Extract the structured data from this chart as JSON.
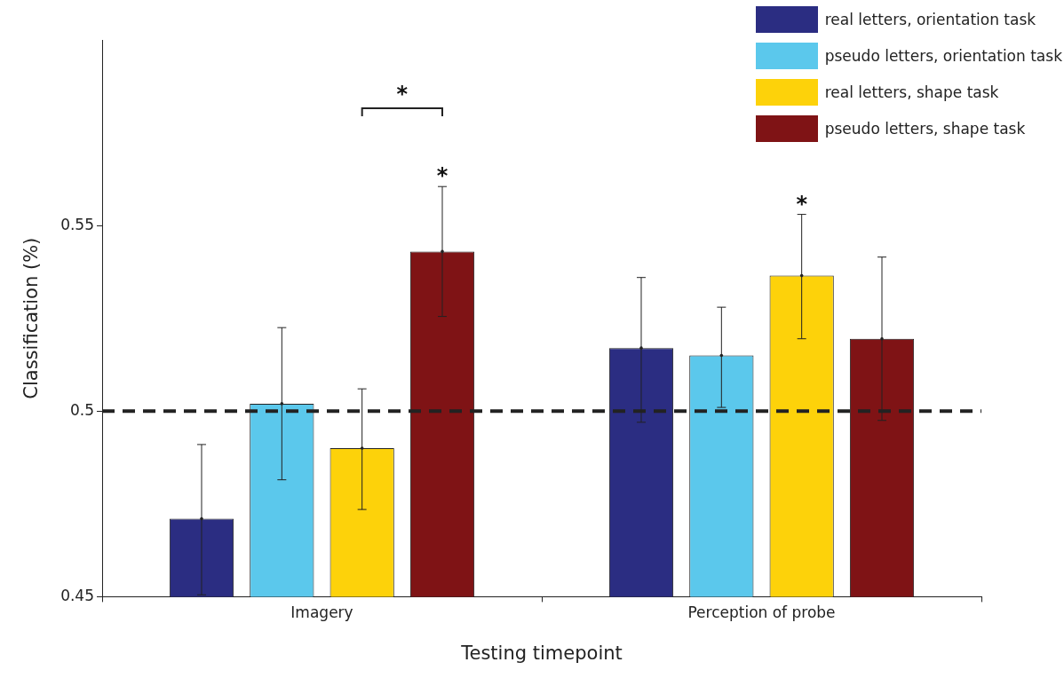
{
  "chart_data": {
    "type": "bar",
    "xlabel": "Testing timepoint",
    "ylabel": "Classification (%)",
    "categories": [
      "Imagery",
      "Perception of probe"
    ],
    "series": [
      {
        "name": "real letters, orientation task",
        "color": "#2b2d82",
        "values": [
          0.471,
          0.517
        ],
        "errors": [
          [
            0.4505,
            0.491
          ],
          [
            0.497,
            0.536
          ]
        ]
      },
      {
        "name": "pseudo letters, orientation task",
        "color": "#5bc8ec",
        "values": [
          0.502,
          0.515
        ],
        "errors": [
          [
            0.4815,
            0.5225
          ],
          [
            0.501,
            0.528
          ]
        ]
      },
      {
        "name": "real letters, shape task",
        "color": "#fdd20a",
        "values": [
          0.49,
          0.5365
        ],
        "errors": [
          [
            0.4735,
            0.506
          ],
          [
            0.5195,
            0.553
          ]
        ],
        "value_labels": [
          null,
          "*"
        ]
      },
      {
        "name": "pseudo letters, shape task",
        "color": "#7f1315",
        "values": [
          0.543,
          0.5195
        ],
        "errors": [
          [
            0.5255,
            0.5605
          ],
          [
            0.4975,
            0.5415
          ]
        ],
        "value_labels": [
          "*",
          null
        ]
      }
    ],
    "ylim": [
      0.45,
      0.6
    ],
    "yticks": [
      0.45,
      0.5,
      0.55
    ],
    "legend": "top right",
    "ref_lines": [
      {
        "axis": "y",
        "value": 0.5,
        "line_style": "dashed",
        "color": "#222222"
      }
    ],
    "annotations": [
      "*"
    ]
  }
}
